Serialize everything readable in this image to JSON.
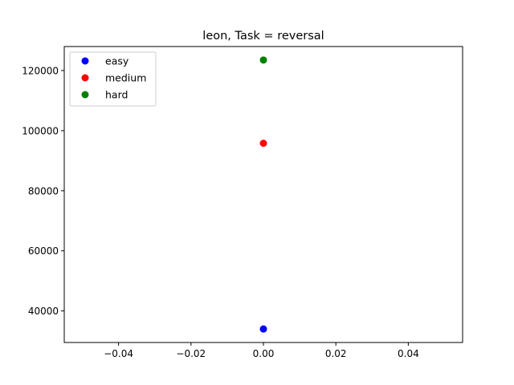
{
  "chart_data": {
    "type": "scatter",
    "title": "leon, Task = reversal",
    "xlabel": "",
    "ylabel": "",
    "xlim": [
      -0.055,
      0.055
    ],
    "ylim": [
      29500,
      128000
    ],
    "xticks": [
      -0.04,
      -0.02,
      0.0,
      0.02,
      0.04
    ],
    "xtick_labels": [
      "−0.04",
      "−0.02",
      "0.00",
      "0.02",
      "0.04"
    ],
    "yticks": [
      40000,
      60000,
      80000,
      100000,
      120000
    ],
    "ytick_labels": [
      "40000",
      "60000",
      "80000",
      "100000",
      "120000"
    ],
    "grid": false,
    "legend": {
      "placement": "top-left"
    },
    "series": [
      {
        "name": "easy",
        "color": "#0000ff",
        "points": [
          {
            "x": 0.0,
            "y": 34000
          }
        ]
      },
      {
        "name": "medium",
        "color": "#ff0000",
        "points": [
          {
            "x": 0.0,
            "y": 95800
          }
        ]
      },
      {
        "name": "hard",
        "color": "#008000",
        "points": [
          {
            "x": 0.0,
            "y": 123500
          }
        ]
      }
    ]
  }
}
